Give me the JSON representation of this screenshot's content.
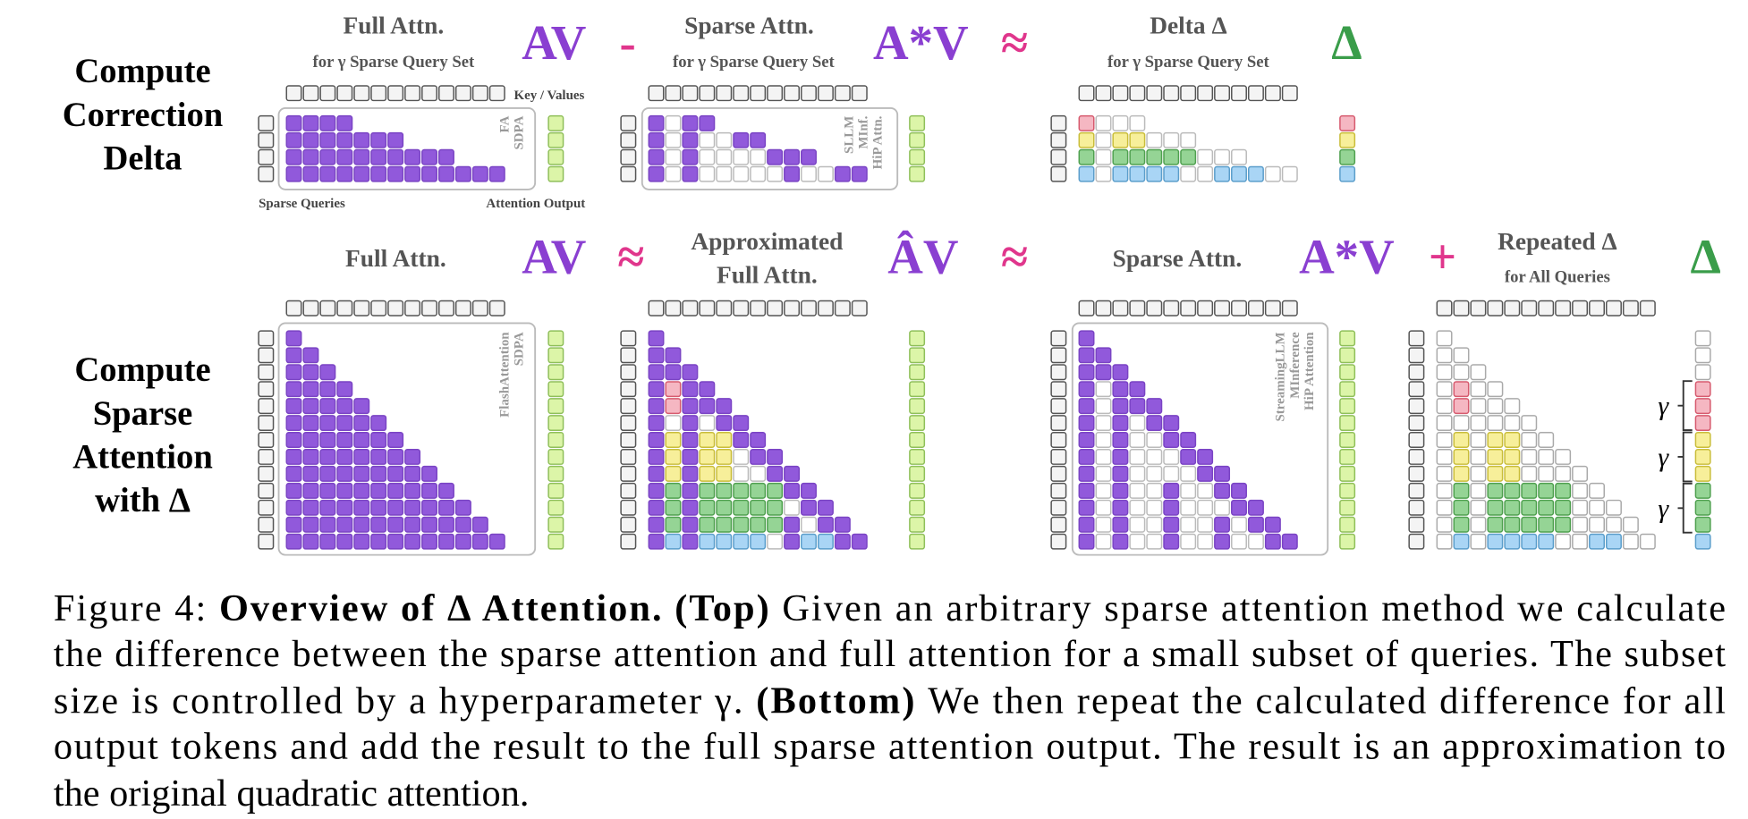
{
  "top": {
    "row_label": [
      "Compute",
      "Correction",
      "Delta"
    ],
    "full": {
      "title": "Full Attn.",
      "subtitle": "for γ Sparse Query Set",
      "methods": [
        "FA",
        "SDPA"
      ]
    },
    "op1": "AV",
    "minus": "-",
    "sparse": {
      "title": "Sparse Attn.",
      "subtitle": "for γ Sparse Query Set",
      "methods": [
        "SLLM",
        "MInf.",
        "HiP Attn."
      ]
    },
    "op2": "A*V",
    "approx": "≈",
    "delta": {
      "title": "Delta Δ",
      "subtitle": "for γ Sparse Query Set"
    },
    "op3": "Δ",
    "key_label": "Key / Values",
    "query_label": "Sparse Queries",
    "output_label": "Attention Output"
  },
  "bottom": {
    "row_label": [
      "Compute",
      "Sparse",
      "Attention",
      "with Δ"
    ],
    "full": {
      "title": "Full Attn.",
      "methods": [
        "FlashAttention",
        "SDPA"
      ]
    },
    "op1": "AV",
    "approx1": "≈",
    "approximated": {
      "title": [
        "Approximated",
        "Full Attn."
      ]
    },
    "op2": "ÂV",
    "approx2": "≈",
    "sparse": {
      "title": "Sparse Attn.",
      "methods": [
        "StreamingLLM",
        "MInference",
        "HiP Attention"
      ]
    },
    "op3": "A*V",
    "plus": "+",
    "repeated": {
      "title": "Repeated Δ",
      "subtitle": "for All Queries",
      "gamma": [
        "γ",
        "γ",
        "γ"
      ]
    },
    "op4": "Δ"
  },
  "caption": {
    "lines": [
      [
        {
          "text": "Figure 4: ",
          "bold": false
        },
        {
          "text": "Overview of Δ Attention. (Top)",
          "bold": true
        },
        {
          "text": " Given an arbitrary sparse attention method we calculate",
          "bold": false
        }
      ],
      [
        {
          "text": "the difference between the sparse attention and full attention for a small subset of queries. The subset",
          "bold": false
        }
      ],
      [
        {
          "text": "size is controlled by a hyperparameter γ. ",
          "bold": false
        },
        {
          "text": "(Bottom)",
          "bold": true
        },
        {
          "text": " We then repeat the calculated difference for all",
          "bold": false
        }
      ],
      [
        {
          "text": "output tokens and add the result to the full sparse attention output. The result is an approximation to",
          "bold": false
        }
      ],
      [
        {
          "text": "the original quadratic attention.",
          "bold": false
        }
      ]
    ]
  }
}
